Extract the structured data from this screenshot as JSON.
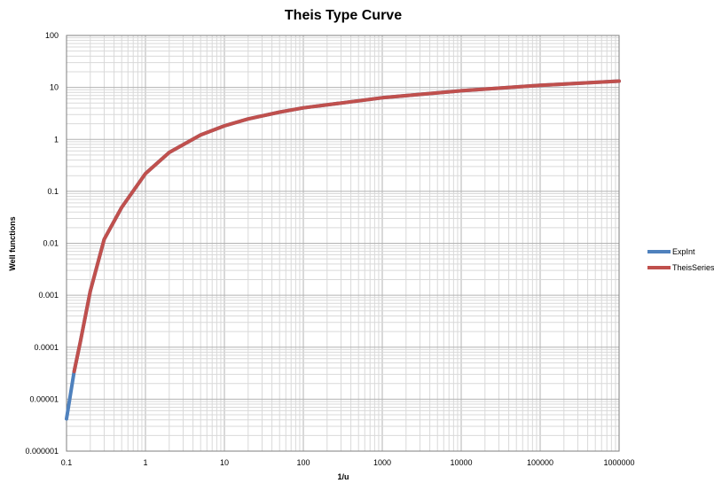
{
  "chart_data": {
    "type": "line",
    "title": "Theis Type Curve",
    "xlabel": "1/u",
    "ylabel": "Well functions",
    "x_scale": "log",
    "y_scale": "log",
    "xlim": [
      0.1,
      1000000
    ],
    "ylim": [
      1e-06,
      100
    ],
    "x_ticks": [
      "0.1",
      "1",
      "10",
      "100",
      "1000",
      "10000",
      "100000",
      "1000000"
    ],
    "y_ticks": [
      "0.000001",
      "0.00001",
      "0.0001",
      "0.001",
      "0.01",
      "0.1",
      "1",
      "10",
      "100"
    ],
    "grid": true,
    "legend_position": "right",
    "series": [
      {
        "name": "ExpInt",
        "color": "#4f81bd",
        "x": [
          0.1,
          0.125,
          0.15,
          0.2,
          0.3,
          0.5,
          1,
          2,
          5,
          10,
          20,
          50,
          100,
          1000,
          10000,
          100000,
          1000000
        ],
        "y": [
          4.2e-06,
          3.4e-05,
          0.00013,
          0.0012,
          0.012,
          0.049,
          0.219,
          0.56,
          1.22,
          1.82,
          2.47,
          3.35,
          4.04,
          6.33,
          8.63,
          10.94,
          13.24
        ]
      },
      {
        "name": "TheisSeries",
        "color": "#c0504d",
        "x": [
          0.125,
          0.15,
          0.2,
          0.3,
          0.5,
          1,
          2,
          5,
          10,
          20,
          50,
          100,
          1000,
          10000,
          100000,
          1000000
        ],
        "y": [
          3.4e-05,
          0.00013,
          0.0012,
          0.012,
          0.049,
          0.219,
          0.56,
          1.22,
          1.82,
          2.47,
          3.35,
          4.04,
          6.33,
          8.63,
          10.94,
          13.24
        ]
      }
    ]
  }
}
